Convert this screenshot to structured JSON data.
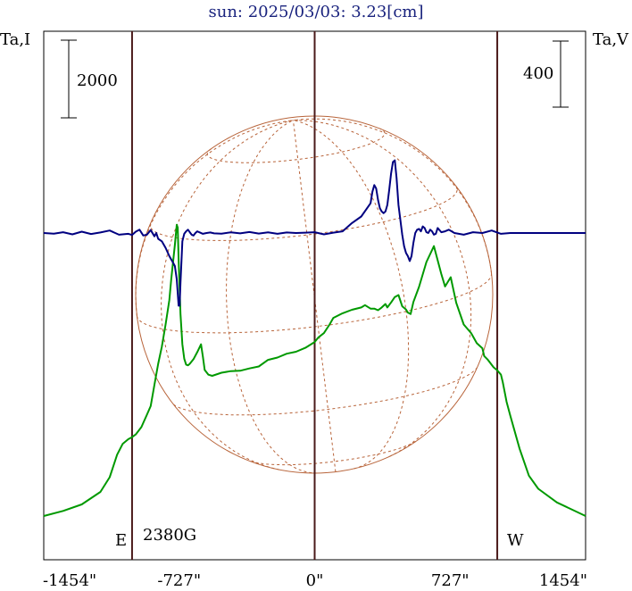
{
  "chart_data": {
    "type": "line",
    "title": "sun: 2025/03/03: 3.23[cm]",
    "left_axis_label": "Ta,I",
    "right_axis_label": "Ta,V",
    "x_unit": "arcsec",
    "xlim": [
      -1454,
      1454
    ],
    "x_ticks": [
      -1454,
      -727,
      0,
      727,
      1454
    ],
    "x_tick_labels": [
      "-1454\"",
      "-727\"",
      "0\"",
      "727\"",
      "1454\""
    ],
    "left_scale_bar": {
      "label": "2000",
      "value": 2000
    },
    "right_scale_bar": {
      "label": "400",
      "value": 400
    },
    "vertical_lines_x": [
      -980,
      0,
      980
    ],
    "limb_labels": {
      "east": "E",
      "west": "W"
    },
    "annotations": [
      {
        "text": "2380G",
        "x": -710
      }
    ],
    "grid": false,
    "series": [
      {
        "axis": "left",
        "color": "#009900",
        "x": [
          -1454,
          -1350,
          -1250,
          -1150,
          -1100,
          -1060,
          -1030,
          -1000,
          -980,
          -960,
          -930,
          -900,
          -880,
          -860,
          -840,
          -820,
          -800,
          -780,
          -770,
          -760,
          -750,
          -740,
          -735,
          -730,
          -720,
          -710,
          -700,
          -690,
          -680,
          -670,
          -650,
          -630,
          -610,
          -600,
          -590,
          -570,
          -550,
          -500,
          -450,
          -400,
          -350,
          -300,
          -250,
          -200,
          -150,
          -100,
          -50,
          0,
          20,
          50,
          80,
          100,
          150,
          200,
          250,
          270,
          300,
          320,
          340,
          360,
          380,
          390,
          410,
          430,
          450,
          470,
          490,
          500,
          515,
          530,
          560,
          600,
          640,
          680,
          700,
          730,
          760,
          800,
          840,
          870,
          900,
          910,
          930,
          960,
          980,
          1000,
          1010,
          1030,
          1050,
          1100,
          1150,
          1200,
          1300,
          1454
        ],
        "y": [
          0,
          130,
          300,
          620,
          1000,
          1580,
          1860,
          1980,
          2030,
          2100,
          2290,
          2610,
          2830,
          3380,
          3920,
          4360,
          4930,
          5560,
          6090,
          6550,
          6980,
          7500,
          7430,
          6600,
          5200,
          4420,
          4050,
          3900,
          3880,
          3920,
          4040,
          4220,
          4420,
          4100,
          3760,
          3640,
          3610,
          3690,
          3730,
          3740,
          3800,
          3850,
          4020,
          4080,
          4180,
          4230,
          4330,
          4480,
          4600,
          4710,
          4930,
          5100,
          5220,
          5310,
          5370,
          5430,
          5340,
          5340,
          5300,
          5370,
          5460,
          5370,
          5500,
          5640,
          5690,
          5400,
          5320,
          5240,
          5200,
          5510,
          5900,
          6540,
          6950,
          6230,
          5910,
          6150,
          5490,
          4930,
          4710,
          4450,
          4320,
          4120,
          4020,
          3830,
          3750,
          3640,
          3440,
          2940,
          2580,
          1730,
          1040,
          700,
          350,
          0
        ]
      },
      {
        "axis": "right",
        "color": "#000080",
        "x": [
          -1454,
          -1400,
          -1350,
          -1300,
          -1250,
          -1200,
          -1150,
          -1100,
          -1050,
          -1000,
          -980,
          -960,
          -940,
          -920,
          -900,
          -880,
          -860,
          -850,
          -840,
          -820,
          -800,
          -780,
          -770,
          -760,
          -750,
          -740,
          -730,
          -725,
          -720,
          -710,
          -700,
          -690,
          -680,
          -670,
          -660,
          -650,
          -640,
          -630,
          -620,
          -600,
          -580,
          -560,
          -540,
          -500,
          -450,
          -400,
          -350,
          -300,
          -250,
          -200,
          -150,
          -100,
          -50,
          0,
          50,
          100,
          150,
          200,
          250,
          300,
          310,
          320,
          330,
          340,
          350,
          360,
          370,
          380,
          390,
          400,
          410,
          420,
          430,
          440,
          450,
          460,
          470,
          480,
          490,
          500,
          510,
          520,
          530,
          540,
          550,
          560,
          570,
          580,
          590,
          600,
          610,
          620,
          630,
          640,
          650,
          660,
          680,
          700,
          720,
          750,
          800,
          850,
          900,
          950,
          1000,
          1050,
          1100,
          1150,
          1200,
          1300,
          1400,
          1454
        ],
        "y": [
          0,
          -4,
          5,
          -8,
          8,
          -6,
          3,
          15,
          -10,
          -5,
          -12,
          8,
          20,
          -15,
          -10,
          18,
          -20,
          0,
          -35,
          -50,
          -90,
          -140,
          -160,
          -180,
          -200,
          -280,
          -440,
          -440,
          -300,
          -50,
          -5,
          10,
          20,
          5,
          -10,
          -15,
          0,
          10,
          5,
          -5,
          0,
          3,
          -2,
          -4,
          4,
          -2,
          6,
          -3,
          4,
          -5,
          3,
          0,
          2,
          5,
          -8,
          2,
          10,
          60,
          100,
          180,
          250,
          290,
          270,
          200,
          150,
          130,
          120,
          130,
          170,
          260,
          360,
          430,
          440,
          330,
          170,
          80,
          -10,
          -80,
          -120,
          -140,
          -170,
          -140,
          -60,
          0,
          20,
          25,
          10,
          40,
          30,
          5,
          0,
          20,
          10,
          -10,
          -5,
          30,
          5,
          10,
          20,
          0,
          -10,
          5,
          0,
          15,
          -5,
          0,
          0,
          0,
          0,
          0,
          0,
          0
        ]
      }
    ]
  },
  "disk_overlay": {
    "color": "#b8643a",
    "description_visible": false
  }
}
